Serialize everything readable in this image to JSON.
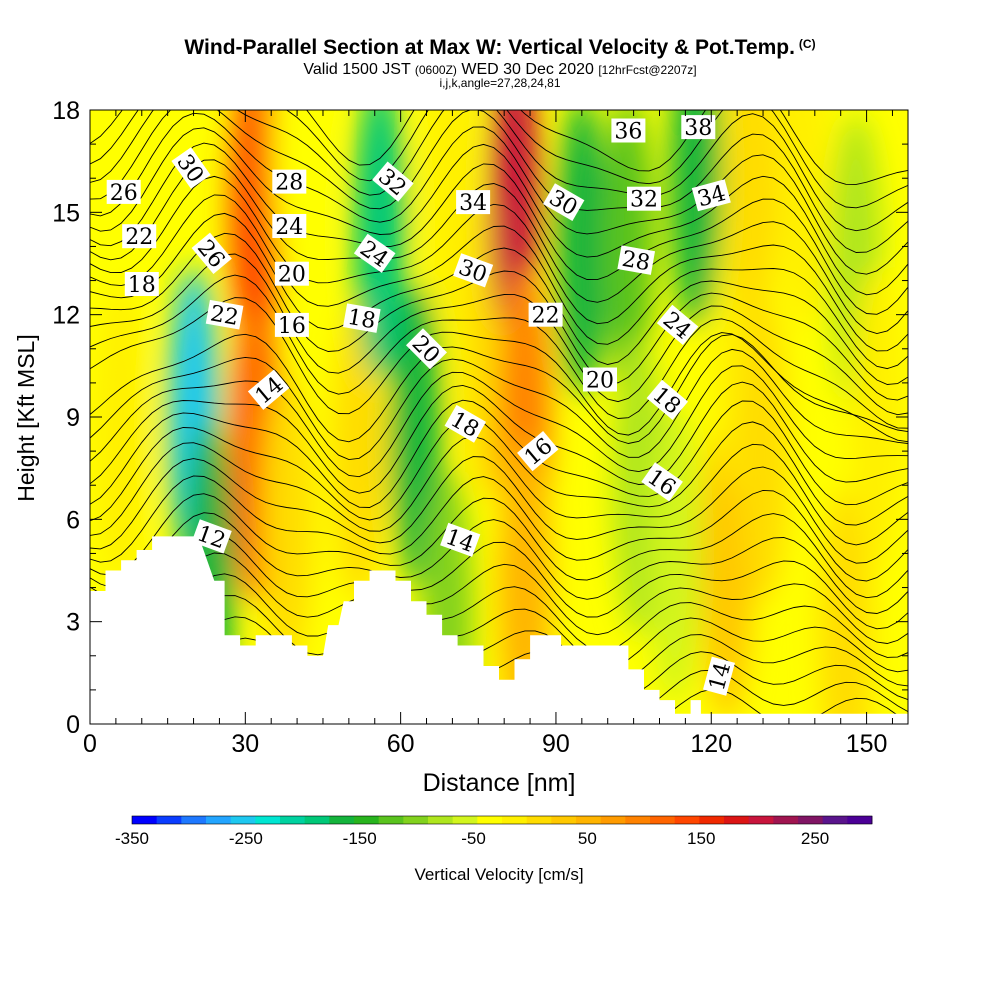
{
  "title": "Wind-Parallel Section at Max W: Vertical Velocity & Pot.Temp.",
  "title_mark": "(C)",
  "subtitle": {
    "valid": "Valid 1500 JST",
    "utc": "(0600Z)",
    "date": "WED 30 Dec 2020",
    "forecast": "[12hrFcst@2207z]"
  },
  "grid_note": "i,j,k,angle=27,28,24,81",
  "chart_data": {
    "type": "heatmap",
    "xlabel": "Distance [nm]",
    "ylabel": "Height [Kft MSL]",
    "xlim": [
      0,
      158
    ],
    "ylim": [
      0,
      18
    ],
    "x_ticks": [
      0,
      30,
      60,
      90,
      120,
      150
    ],
    "y_ticks": [
      0,
      3,
      6,
      9,
      12,
      15,
      18
    ],
    "colorbar": {
      "label": "Vertical Velocity [cm/s]",
      "range": [
        -350,
        300
      ],
      "step": 25,
      "tick_labels": [
        -350,
        -250,
        -150,
        -50,
        50,
        150,
        250
      ],
      "colors": [
        "#0000ff",
        "#0a3cff",
        "#1e78ff",
        "#23a5ff",
        "#1ec8f0",
        "#00e6d2",
        "#00d2a0",
        "#00c878",
        "#14b43c",
        "#28b41e",
        "#5ac31e",
        "#82d21e",
        "#afe61e",
        "#d2f51e",
        "#ffff00",
        "#fff000",
        "#ffdc00",
        "#ffc800",
        "#ffb400",
        "#ff9b00",
        "#ff8200",
        "#ff6400",
        "#ff4600",
        "#f02800",
        "#dc1414",
        "#c8143c",
        "#a01450",
        "#801464",
        "#5a148c",
        "#4b0096"
      ]
    },
    "velocity_features": [
      {
        "x_nm": 6,
        "z_kft": 8.5,
        "w": 40
      },
      {
        "x_nm": 20,
        "z_kft": 9,
        "w": -230
      },
      {
        "x_nm": 23,
        "z_kft": 4.5,
        "w": -150
      },
      {
        "x_nm": 32,
        "z_kft": 15,
        "w": 210
      },
      {
        "x_nm": 32,
        "z_kft": 8,
        "w": 180
      },
      {
        "x_nm": 38,
        "z_kft": 6,
        "w": 60
      },
      {
        "x_nm": 52,
        "z_kft": 8,
        "w": 50
      },
      {
        "x_nm": 56,
        "z_kft": 14.5,
        "w": -160
      },
      {
        "x_nm": 63,
        "z_kft": 8.5,
        "w": -150
      },
      {
        "x_nm": 69,
        "z_kft": 3,
        "w": -70
      },
      {
        "x_nm": 77,
        "z_kft": 11,
        "w": 60
      },
      {
        "x_nm": 82,
        "z_kft": 15.5,
        "w": 290
      },
      {
        "x_nm": 84,
        "z_kft": 9,
        "w": 160
      },
      {
        "x_nm": 84,
        "z_kft": 4,
        "w": 100
      },
      {
        "x_nm": 95,
        "z_kft": 14,
        "w": -150
      },
      {
        "x_nm": 104,
        "z_kft": 14,
        "w": -90
      },
      {
        "x_nm": 106,
        "z_kft": 7,
        "w": -40
      },
      {
        "x_nm": 113,
        "z_kft": 5,
        "w": -20
      },
      {
        "x_nm": 117,
        "z_kft": 16,
        "w": -140
      },
      {
        "x_nm": 123,
        "z_kft": 4.5,
        "w": 90
      },
      {
        "x_nm": 126,
        "z_kft": 11,
        "w": 30
      },
      {
        "x_nm": 130,
        "z_kft": 8,
        "w": 60
      },
      {
        "x_nm": 128,
        "z_kft": 16,
        "w": 60
      },
      {
        "x_nm": 138,
        "z_kft": 16,
        "w": 40
      },
      {
        "x_nm": 148,
        "z_kft": 13.5,
        "w": -30
      },
      {
        "x_nm": 146,
        "z_kft": 2.5,
        "w": 60
      },
      {
        "x_nm": 152,
        "z_kft": 9,
        "w": 30
      },
      {
        "x_nm": 40,
        "z_kft": 17,
        "w": 20
      },
      {
        "x_nm": 70,
        "z_kft": 16,
        "w": 40
      }
    ],
    "terrain_kft": [
      {
        "x_nm": 0,
        "z_kft": 3.9
      },
      {
        "x_nm": 3,
        "z_kft": 3.9
      },
      {
        "x_nm": 3,
        "z_kft": 4.5
      },
      {
        "x_nm": 6,
        "z_kft": 4.5
      },
      {
        "x_nm": 6,
        "z_kft": 4.8
      },
      {
        "x_nm": 9,
        "z_kft": 4.8
      },
      {
        "x_nm": 9,
        "z_kft": 5.1
      },
      {
        "x_nm": 12,
        "z_kft": 5.1
      },
      {
        "x_nm": 12,
        "z_kft": 5.5
      },
      {
        "x_nm": 21,
        "z_kft": 5.5
      },
      {
        "x_nm": 24,
        "z_kft": 4.2
      },
      {
        "x_nm": 26,
        "z_kft": 4.2
      },
      {
        "x_nm": 26,
        "z_kft": 2.6
      },
      {
        "x_nm": 29,
        "z_kft": 2.6
      },
      {
        "x_nm": 29,
        "z_kft": 2.3
      },
      {
        "x_nm": 32,
        "z_kft": 2.3
      },
      {
        "x_nm": 32,
        "z_kft": 2.6
      },
      {
        "x_nm": 39,
        "z_kft": 2.6
      },
      {
        "x_nm": 39,
        "z_kft": 2.3
      },
      {
        "x_nm": 42,
        "z_kft": 2.3
      },
      {
        "x_nm": 42,
        "z_kft": 2.0
      },
      {
        "x_nm": 45,
        "z_kft": 2.0
      },
      {
        "x_nm": 46,
        "z_kft": 2.9
      },
      {
        "x_nm": 48,
        "z_kft": 2.9
      },
      {
        "x_nm": 49,
        "z_kft": 3.6
      },
      {
        "x_nm": 51,
        "z_kft": 3.6
      },
      {
        "x_nm": 51,
        "z_kft": 4.2
      },
      {
        "x_nm": 54,
        "z_kft": 4.2
      },
      {
        "x_nm": 54,
        "z_kft": 4.5
      },
      {
        "x_nm": 59,
        "z_kft": 4.5
      },
      {
        "x_nm": 59,
        "z_kft": 4.2
      },
      {
        "x_nm": 62,
        "z_kft": 4.2
      },
      {
        "x_nm": 62,
        "z_kft": 3.6
      },
      {
        "x_nm": 65,
        "z_kft": 3.6
      },
      {
        "x_nm": 65,
        "z_kft": 3.2
      },
      {
        "x_nm": 68,
        "z_kft": 3.2
      },
      {
        "x_nm": 68,
        "z_kft": 2.6
      },
      {
        "x_nm": 71,
        "z_kft": 2.6
      },
      {
        "x_nm": 71,
        "z_kft": 2.3
      },
      {
        "x_nm": 76,
        "z_kft": 2.3
      },
      {
        "x_nm": 76,
        "z_kft": 1.7
      },
      {
        "x_nm": 79,
        "z_kft": 1.7
      },
      {
        "x_nm": 79,
        "z_kft": 1.3
      },
      {
        "x_nm": 82,
        "z_kft": 1.3
      },
      {
        "x_nm": 82,
        "z_kft": 1.9
      },
      {
        "x_nm": 85,
        "z_kft": 1.9
      },
      {
        "x_nm": 85,
        "z_kft": 2.6
      },
      {
        "x_nm": 91,
        "z_kft": 2.6
      },
      {
        "x_nm": 91,
        "z_kft": 2.3
      },
      {
        "x_nm": 104,
        "z_kft": 2.3
      },
      {
        "x_nm": 104,
        "z_kft": 1.6
      },
      {
        "x_nm": 107,
        "z_kft": 1.6
      },
      {
        "x_nm": 107,
        "z_kft": 1.0
      },
      {
        "x_nm": 110,
        "z_kft": 1.0
      },
      {
        "x_nm": 110,
        "z_kft": 0.7
      },
      {
        "x_nm": 113,
        "z_kft": 0.7
      },
      {
        "x_nm": 113,
        "z_kft": 0.3
      },
      {
        "x_nm": 116,
        "z_kft": 0.3
      },
      {
        "x_nm": 116,
        "z_kft": 0.7
      },
      {
        "x_nm": 118,
        "z_kft": 0.7
      },
      {
        "x_nm": 118,
        "z_kft": 0.3
      },
      {
        "x_nm": 158,
        "z_kft": 0.3
      }
    ],
    "isentrope_labels": [
      {
        "text": "26",
        "x_nm": 6.5,
        "z_kft": 15.6,
        "angle": 0
      },
      {
        "text": "30",
        "x_nm": 19.5,
        "z_kft": 16.3,
        "angle": 55
      },
      {
        "text": "28",
        "x_nm": 38.5,
        "z_kft": 15.9,
        "angle": 0
      },
      {
        "text": "32",
        "x_nm": 58.5,
        "z_kft": 15.9,
        "angle": 40
      },
      {
        "text": "36",
        "x_nm": 104,
        "z_kft": 17.4,
        "angle": 0
      },
      {
        "text": "38",
        "x_nm": 117.5,
        "z_kft": 17.5,
        "angle": 0
      },
      {
        "text": "22",
        "x_nm": 9.5,
        "z_kft": 14.3,
        "angle": 0
      },
      {
        "text": "26",
        "x_nm": 23.5,
        "z_kft": 13.8,
        "angle": 50
      },
      {
        "text": "24",
        "x_nm": 38.5,
        "z_kft": 14.6,
        "angle": 0
      },
      {
        "text": "34",
        "x_nm": 74,
        "z_kft": 15.3,
        "angle": 0
      },
      {
        "text": "30",
        "x_nm": 91.5,
        "z_kft": 15.3,
        "angle": 30
      },
      {
        "text": "32",
        "x_nm": 107,
        "z_kft": 15.4,
        "angle": 0
      },
      {
        "text": "34",
        "x_nm": 120,
        "z_kft": 15.5,
        "angle": -15
      },
      {
        "text": "18",
        "x_nm": 10,
        "z_kft": 12.9,
        "angle": 0
      },
      {
        "text": "20",
        "x_nm": 39,
        "z_kft": 13.2,
        "angle": 0
      },
      {
        "text": "24",
        "x_nm": 55,
        "z_kft": 13.8,
        "angle": 35
      },
      {
        "text": "30",
        "x_nm": 74,
        "z_kft": 13.3,
        "angle": 20
      },
      {
        "text": "28",
        "x_nm": 105.5,
        "z_kft": 13.6,
        "angle": 10
      },
      {
        "text": "22",
        "x_nm": 26,
        "z_kft": 12.0,
        "angle": 10
      },
      {
        "text": "16",
        "x_nm": 39,
        "z_kft": 11.7,
        "angle": 0
      },
      {
        "text": "18",
        "x_nm": 52.5,
        "z_kft": 11.9,
        "angle": 10
      },
      {
        "text": "22",
        "x_nm": 88,
        "z_kft": 12.0,
        "angle": 0
      },
      {
        "text": "24",
        "x_nm": 113.5,
        "z_kft": 11.7,
        "angle": 40
      },
      {
        "text": "20",
        "x_nm": 65,
        "z_kft": 11.0,
        "angle": 45
      },
      {
        "text": "20",
        "x_nm": 98.5,
        "z_kft": 10.1,
        "angle": 0
      },
      {
        "text": "14",
        "x_nm": 34.5,
        "z_kft": 9.8,
        "angle": -40
      },
      {
        "text": "18",
        "x_nm": 111.5,
        "z_kft": 9.5,
        "angle": 40
      },
      {
        "text": "18",
        "x_nm": 72.5,
        "z_kft": 8.8,
        "angle": 30
      },
      {
        "text": "16",
        "x_nm": 86.5,
        "z_kft": 8.0,
        "angle": -40
      },
      {
        "text": "16",
        "x_nm": 110.5,
        "z_kft": 7.1,
        "angle": 35
      },
      {
        "text": "12",
        "x_nm": 23.5,
        "z_kft": 5.5,
        "angle": 20
      },
      {
        "text": "14",
        "x_nm": 71.5,
        "z_kft": 5.4,
        "angle": 20
      },
      {
        "text": "14",
        "x_nm": 121.5,
        "z_kft": 1.4,
        "angle": -75
      }
    ]
  }
}
